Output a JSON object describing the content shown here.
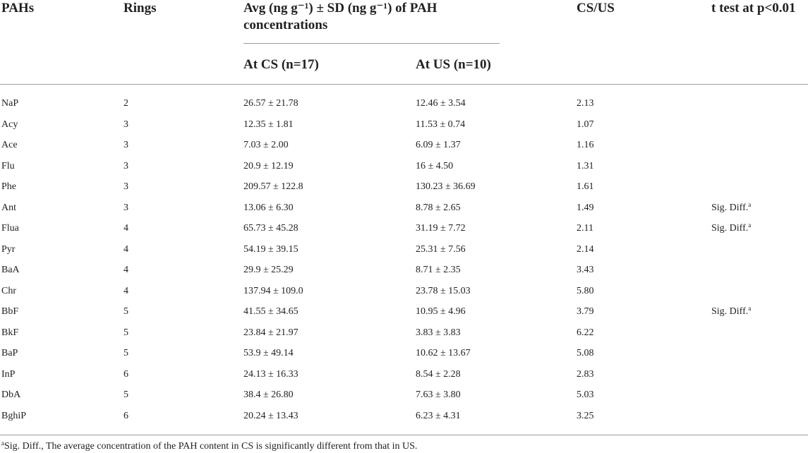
{
  "table": {
    "headers": {
      "pahs": "PAHs",
      "rings": "Rings",
      "avg": "Avg (ng g⁻¹) ± SD (ng g⁻¹) of PAH concentrations",
      "at_cs": "At CS (n=17)",
      "at_us": "At US (n=10)",
      "cs_us": "CS/US",
      "ttest": "t test at p<0.01"
    },
    "rows": [
      {
        "pah": "NaP",
        "rings": "2",
        "cs": "26.57 ± 21.78",
        "us": "12.46 ± 3.54",
        "ratio": "2.13",
        "ttest": ""
      },
      {
        "pah": "Acy",
        "rings": "3",
        "cs": "12.35 ± 1.81",
        "us": "11.53 ± 0.74",
        "ratio": "1.07",
        "ttest": ""
      },
      {
        "pah": "Ace",
        "rings": "3",
        "cs": "7.03 ± 2.00",
        "us": "6.09 ± 1.37",
        "ratio": "1.16",
        "ttest": ""
      },
      {
        "pah": "Flu",
        "rings": "3",
        "cs": "20.9 ± 12.19",
        "us": "16 ± 4.50",
        "ratio": "1.31",
        "ttest": ""
      },
      {
        "pah": "Phe",
        "rings": "3",
        "cs": "209.57 ± 122.8",
        "us": "130.23 ± 36.69",
        "ratio": "1.61",
        "ttest": ""
      },
      {
        "pah": "Ant",
        "rings": "3",
        "cs": "13.06 ± 6.30",
        "us": "8.78 ± 2.65",
        "ratio": "1.49",
        "ttest": "Sig. Diff."
      },
      {
        "pah": "Flua",
        "rings": "4",
        "cs": "65.73 ± 45.28",
        "us": "31.19 ± 7.72",
        "ratio": "2.11",
        "ttest": "Sig. Diff."
      },
      {
        "pah": "Pyr",
        "rings": "4",
        "cs": "54.19 ± 39.15",
        "us": "25.31 ± 7.56",
        "ratio": "2.14",
        "ttest": ""
      },
      {
        "pah": "BaA",
        "rings": "4",
        "cs": "29.9 ± 25.29",
        "us": "8.71 ± 2.35",
        "ratio": "3.43",
        "ttest": ""
      },
      {
        "pah": "Chr",
        "rings": "4",
        "cs": "137.94 ± 109.0",
        "us": "23.78 ± 15.03",
        "ratio": "5.80",
        "ttest": ""
      },
      {
        "pah": "BbF",
        "rings": "5",
        "cs": "41.55 ± 34.65",
        "us": "10.95 ± 4.96",
        "ratio": "3.79",
        "ttest": "Sig. Diff."
      },
      {
        "pah": "BkF",
        "rings": "5",
        "cs": "23.84 ± 21.97",
        "us": "3.83 ± 3.83",
        "ratio": "6.22",
        "ttest": ""
      },
      {
        "pah": "BaP",
        "rings": "5",
        "cs": "53.9 ± 49.14",
        "us": "10.62 ± 13.67",
        "ratio": "5.08",
        "ttest": ""
      },
      {
        "pah": "InP",
        "rings": "6",
        "cs": "24.13 ± 16.33",
        "us": "8.54 ± 2.28",
        "ratio": "2.83",
        "ttest": ""
      },
      {
        "pah": "DbA",
        "rings": "5",
        "cs": "38.4 ± 26.80",
        "us": "7.63 ± 3.80",
        "ratio": "5.03",
        "ttest": ""
      },
      {
        "pah": "BghiP",
        "rings": "6",
        "cs": "20.24 ± 13.43",
        "us": "6.23 ± 4.31",
        "ratio": "3.25",
        "ttest": ""
      }
    ],
    "superscript": "a",
    "footnote_marker": "a",
    "footnote": "Sig. Diff., The average concentration of the PAH content in CS is significantly different from that in US."
  }
}
